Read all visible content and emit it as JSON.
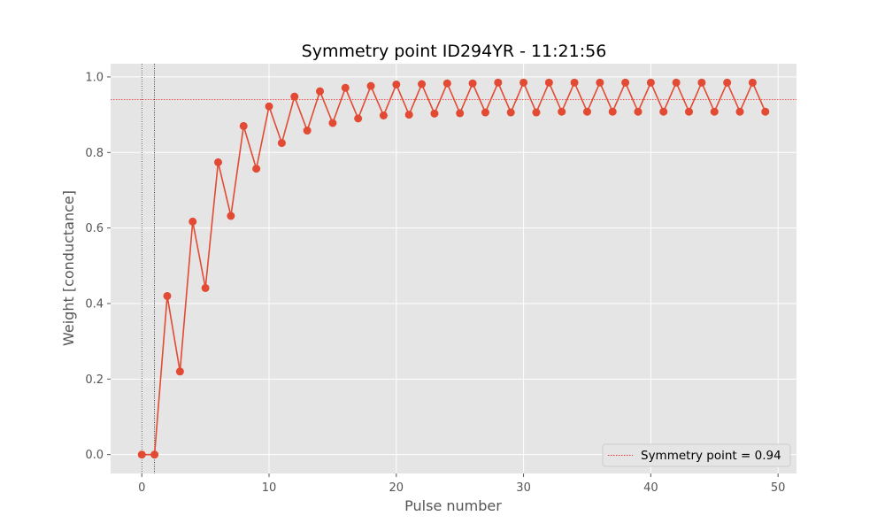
{
  "chart_data": {
    "type": "line",
    "title": "Symmetry point ID294YR - 11:21:56",
    "xlabel": "Pulse number",
    "ylabel": "Weight [conductance]",
    "xlim": [
      -2.45,
      51.45
    ],
    "ylim": [
      -0.05,
      1.035
    ],
    "x_ticks": [
      0,
      10,
      20,
      30,
      40,
      50
    ],
    "y_ticks": [
      0.0,
      0.2,
      0.4,
      0.6,
      0.8,
      1.0
    ],
    "grid": true,
    "legend_position": "lower right",
    "series": [
      {
        "color": "#E24A33",
        "marker": "circle",
        "x": [
          0,
          1,
          2,
          3,
          4,
          5,
          6,
          7,
          8,
          9,
          10,
          11,
          12,
          13,
          14,
          15,
          16,
          17,
          18,
          19,
          20,
          21,
          22,
          23,
          24,
          25,
          26,
          27,
          28,
          29,
          30,
          31,
          32,
          33,
          34,
          35,
          36,
          37,
          38,
          39,
          40,
          41,
          42,
          43,
          44,
          45,
          46,
          47,
          48,
          49
        ],
        "values": [
          0.0,
          0.0,
          0.42,
          0.22,
          0.617,
          0.441,
          0.774,
          0.632,
          0.87,
          0.757,
          0.922,
          0.825,
          0.948,
          0.858,
          0.962,
          0.878,
          0.971,
          0.89,
          0.976,
          0.898,
          0.98,
          0.9,
          0.981,
          0.903,
          0.983,
          0.904,
          0.983,
          0.906,
          0.985,
          0.906,
          0.985,
          0.906,
          0.985,
          0.908,
          0.985,
          0.908,
          0.985,
          0.908,
          0.985,
          0.908,
          0.985,
          0.908,
          0.985,
          0.908,
          0.985,
          0.908,
          0.985,
          0.908,
          0.985,
          0.908
        ]
      }
    ],
    "hlines": [
      {
        "y": 0.94,
        "color": "#FF0000",
        "style": "dotted",
        "legend": "Symmetry point = 0.94"
      }
    ],
    "vlines": [
      {
        "x": 0,
        "color": "#000000",
        "style": "dotted"
      },
      {
        "x": 1,
        "color": "#000000",
        "style": "dotted"
      }
    ],
    "colors": {
      "background": "#E5E5E5",
      "grid": "#FFFFFF"
    }
  }
}
